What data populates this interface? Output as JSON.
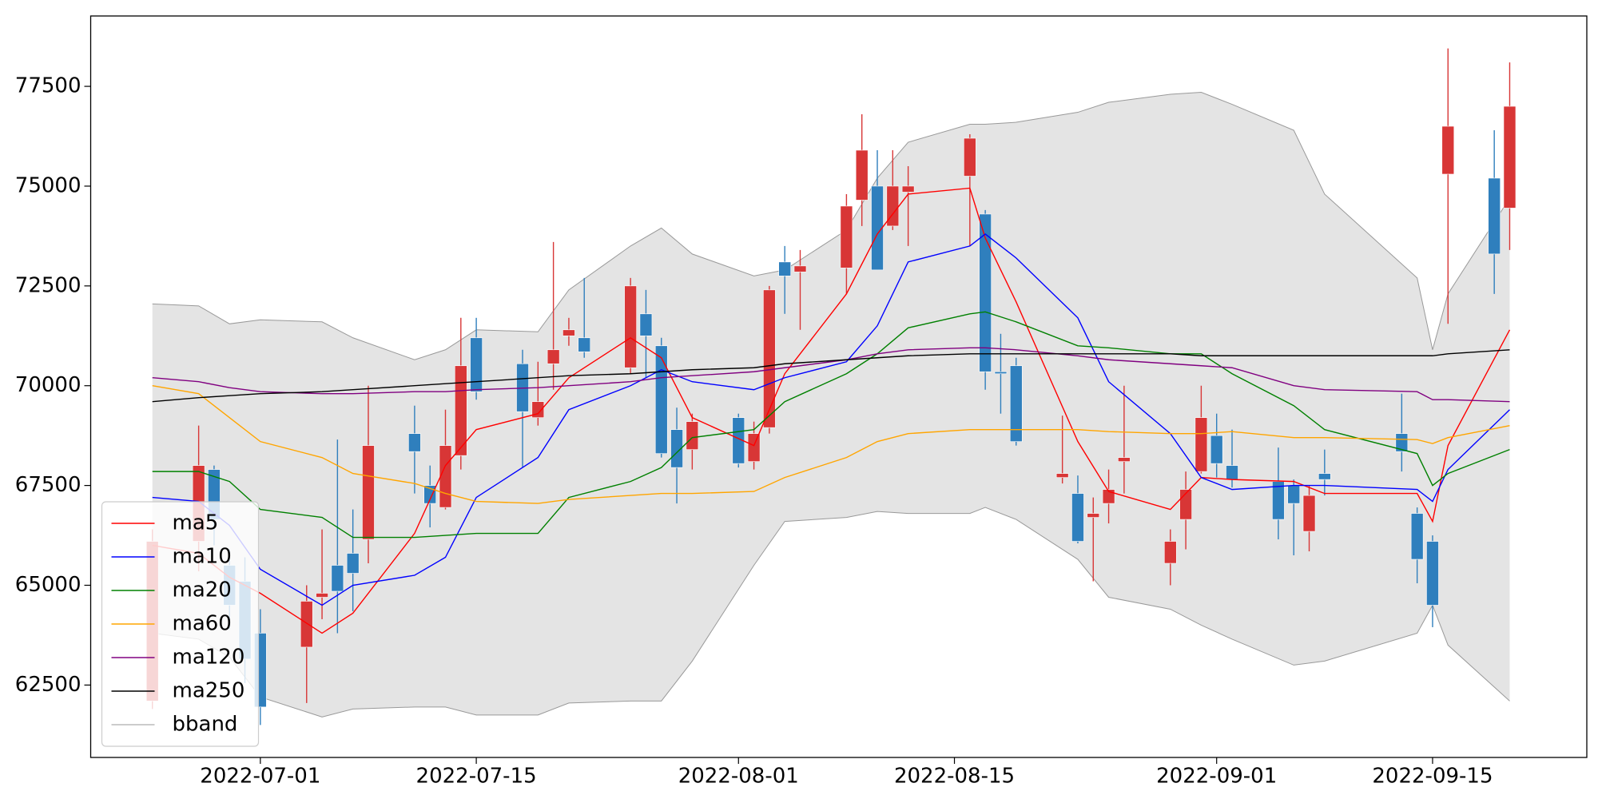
{
  "chart_data": {
    "type": "candlestick",
    "xlim": [
      "2022-06-20",
      "2022-09-25"
    ],
    "xticks": [
      "2022-07-01",
      "2022-07-15",
      "2022-08-01",
      "2022-08-15",
      "2022-09-01",
      "2022-09-15"
    ],
    "ylim": [
      60686,
      79263
    ],
    "yticks": [
      62500,
      65000,
      67500,
      70000,
      72500,
      75000,
      77500
    ],
    "legend": "lower left",
    "candles": {
      "up_color": "#d83636",
      "down_color": "#2f7fbd",
      "x": [
        "2022-06-24",
        "2022-06-27",
        "2022-06-28",
        "2022-06-29",
        "2022-06-30",
        "2022-07-01",
        "2022-07-04",
        "2022-07-05",
        "2022-07-06",
        "2022-07-07",
        "2022-07-08",
        "2022-07-11",
        "2022-07-12",
        "2022-07-13",
        "2022-07-14",
        "2022-07-15",
        "2022-07-18",
        "2022-07-19",
        "2022-07-20",
        "2022-07-21",
        "2022-07-22",
        "2022-07-25",
        "2022-07-26",
        "2022-07-27",
        "2022-07-28",
        "2022-07-29",
        "2022-08-01",
        "2022-08-02",
        "2022-08-03",
        "2022-08-04",
        "2022-08-05",
        "2022-08-08",
        "2022-08-09",
        "2022-08-10",
        "2022-08-11",
        "2022-08-12",
        "2022-08-16",
        "2022-08-17",
        "2022-08-18",
        "2022-08-19",
        "2022-08-22",
        "2022-08-23",
        "2022-08-24",
        "2022-08-25",
        "2022-08-26",
        "2022-08-29",
        "2022-08-30",
        "2022-08-31",
        "2022-09-01",
        "2022-09-02",
        "2022-09-05",
        "2022-09-06",
        "2022-09-07",
        "2022-09-08",
        "2022-09-13",
        "2022-09-14",
        "2022-09-15",
        "2022-09-16",
        "2022-09-19",
        "2022-09-20"
      ],
      "open": [
        62100,
        66100,
        67900,
        65500,
        65100,
        63800,
        63450,
        64700,
        65500,
        65800,
        66150,
        68800,
        67500,
        66950,
        68250,
        71200,
        70550,
        69200,
        70550,
        71250,
        71200,
        70450,
        71800,
        71000,
        68900,
        68400,
        69200,
        68100,
        68950,
        73100,
        72850,
        72950,
        74650,
        75000,
        74000,
        74850,
        75250,
        74300,
        70350,
        70500,
        67700,
        67300,
        66700,
        67050,
        68100,
        65550,
        66650,
        67850,
        68750,
        68000,
        67600,
        67500,
        66350,
        67800,
        68800,
        66800,
        66100,
        75300,
        75200,
        74450
      ],
      "high": [
        66400,
        69000,
        68000,
        65900,
        65700,
        64400,
        65000,
        66400,
        68650,
        66900,
        70000,
        69500,
        68000,
        69400,
        71700,
        71700,
        70900,
        70600,
        73600,
        71700,
        72700,
        72700,
        72400,
        71200,
        69450,
        69300,
        69300,
        69100,
        72500,
        73500,
        73400,
        74800,
        76800,
        75900,
        75900,
        75500,
        76300,
        74400,
        71300,
        70700,
        69250,
        67750,
        67200,
        67900,
        70000,
        66400,
        67850,
        70000,
        69300,
        68900,
        68450,
        67650,
        67500,
        68400,
        69800,
        66950,
        66250,
        78450,
        76400,
        78100
      ],
      "low": [
        61900,
        65350,
        66000,
        63900,
        62550,
        61500,
        62050,
        64150,
        63800,
        64350,
        65550,
        67300,
        66450,
        66900,
        67900,
        69650,
        67950,
        69000,
        69900,
        71000,
        70700,
        70300,
        70200,
        68200,
        67050,
        67900,
        67950,
        67900,
        68800,
        71800,
        71400,
        72300,
        74000,
        72900,
        73900,
        73500,
        73500,
        69900,
        69300,
        68500,
        67550,
        66050,
        65100,
        66550,
        67300,
        65000,
        65900,
        67800,
        67700,
        67450,
        66150,
        65750,
        65850,
        67250,
        67850,
        65050,
        63950,
        71550,
        72300,
        73400
      ],
      "close": [
        66100,
        68000,
        66650,
        64500,
        63150,
        61950,
        64600,
        64800,
        64850,
        65300,
        68500,
        68350,
        67050,
        68500,
        70500,
        69850,
        69350,
        69600,
        70900,
        71400,
        70850,
        72500,
        71250,
        68300,
        67950,
        69100,
        68050,
        68800,
        72400,
        72750,
        73000,
        74500,
        75900,
        72900,
        75000,
        75000,
        76200,
        70350,
        70300,
        68600,
        67800,
        66100,
        66800,
        67400,
        68200,
        66100,
        67400,
        69200,
        68050,
        67650,
        66650,
        67050,
        67250,
        67650,
        68350,
        65650,
        64500,
        76500,
        73300,
        77000
      ]
    },
    "x": [
      "2022-06-24",
      "2022-06-27",
      "2022-06-29",
      "2022-07-01",
      "2022-07-05",
      "2022-07-07",
      "2022-07-11",
      "2022-07-13",
      "2022-07-15",
      "2022-07-19",
      "2022-07-21",
      "2022-07-25",
      "2022-07-27",
      "2022-07-29",
      "2022-08-02",
      "2022-08-04",
      "2022-08-08",
      "2022-08-10",
      "2022-08-12",
      "2022-08-16",
      "2022-08-17",
      "2022-08-19",
      "2022-08-23",
      "2022-08-25",
      "2022-08-29",
      "2022-08-31",
      "2022-09-02",
      "2022-09-06",
      "2022-09-08",
      "2022-09-14",
      "2022-09-15",
      "2022-09-16",
      "2022-09-20"
    ],
    "series": [
      {
        "name": "ma5",
        "color": "#ff0000",
        "values": [
          66000,
          65800,
          65200,
          64800,
          63800,
          64300,
          66300,
          68000,
          68900,
          69300,
          70200,
          71200,
          70700,
          69200,
          68500,
          70300,
          72300,
          73800,
          74800,
          74950,
          73700,
          72100,
          68600,
          67350,
          66900,
          67700,
          67650,
          67600,
          67300,
          67300,
          66600,
          68500,
          71400
        ]
      },
      {
        "name": "ma10",
        "color": "#0000ff",
        "values": [
          67200,
          67100,
          66500,
          65400,
          64500,
          65000,
          65250,
          65700,
          67200,
          68200,
          69400,
          70000,
          70400,
          70100,
          69900,
          70200,
          70600,
          71500,
          73100,
          73500,
          73800,
          73200,
          71700,
          70100,
          68800,
          67700,
          67400,
          67500,
          67500,
          67400,
          67100,
          67900,
          69400
        ]
      },
      {
        "name": "ma20",
        "color": "#008000",
        "values": [
          67850,
          67850,
          67600,
          66900,
          66700,
          66200,
          66200,
          66250,
          66300,
          66300,
          67200,
          67600,
          67950,
          68700,
          68900,
          69600,
          70300,
          70800,
          71450,
          71800,
          71850,
          71600,
          71000,
          70950,
          70800,
          70800,
          70300,
          69500,
          68900,
          68300,
          67500,
          67800,
          68400
        ]
      },
      {
        "name": "ma60",
        "color": "#ffa500",
        "values": [
          70000,
          69800,
          69200,
          68600,
          68200,
          67800,
          67550,
          67300,
          67100,
          67050,
          67150,
          67250,
          67300,
          67300,
          67350,
          67700,
          68200,
          68600,
          68800,
          68900,
          68900,
          68900,
          68900,
          68850,
          68800,
          68800,
          68850,
          68700,
          68700,
          68650,
          68550,
          68700,
          69000
        ]
      },
      {
        "name": "ma120",
        "color": "#800080",
        "values": [
          70200,
          70100,
          69950,
          69850,
          69800,
          69800,
          69850,
          69850,
          69900,
          69950,
          70000,
          70100,
          70200,
          70250,
          70350,
          70450,
          70650,
          70800,
          70900,
          70950,
          70950,
          70900,
          70750,
          70650,
          70550,
          70500,
          70450,
          70000,
          69900,
          69850,
          69650,
          69650,
          69600
        ]
      },
      {
        "name": "ma250",
        "color": "#000000",
        "values": [
          69600,
          69700,
          69750,
          69800,
          69850,
          69900,
          70000,
          70050,
          70100,
          70200,
          70250,
          70300,
          70350,
          70400,
          70450,
          70550,
          70650,
          70700,
          70750,
          70800,
          70800,
          70800,
          70800,
          70800,
          70800,
          70750,
          70750,
          70750,
          70750,
          70750,
          70750,
          70800,
          70900
        ]
      },
      {
        "name": "bband",
        "color": "#999999",
        "fill": "#e4e4e4",
        "upper": [
          72050,
          72000,
          71550,
          71650,
          71600,
          71200,
          70650,
          70900,
          71400,
          71350,
          72400,
          73500,
          73950,
          73300,
          72750,
          72900,
          73900,
          75200,
          76100,
          76550,
          76550,
          76600,
          76850,
          77100,
          77300,
          77350,
          77050,
          76400,
          74800,
          72700,
          70900,
          72300,
          74700
        ],
        "lower": [
          63800,
          63650,
          63200,
          62200,
          61700,
          61900,
          61950,
          61950,
          61750,
          61750,
          62050,
          62100,
          62100,
          63100,
          65500,
          66600,
          66700,
          66850,
          66800,
          66800,
          66950,
          66650,
          65650,
          64700,
          64400,
          64000,
          63650,
          63000,
          63100,
          63800,
          64500,
          63500,
          62100
        ]
      }
    ]
  }
}
